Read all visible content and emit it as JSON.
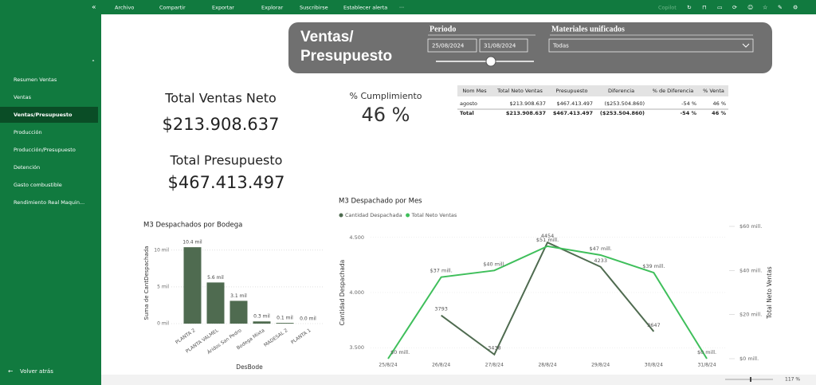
{
  "toolbar": {
    "items": [
      "Archivo",
      "Compartir",
      "Exportar",
      "Explorar",
      "Suscribirse",
      "Establecer alerta",
      "···"
    ],
    "copilot": "Copilot"
  },
  "sidebar": {
    "items": [
      "Resumen Ventas",
      "Ventas",
      "Ventas/Presupuesto",
      "Producción",
      "Producción/Presupuesto",
      "Detención",
      "Gasto combustible",
      "Rendimiento Real Maquin..."
    ],
    "selected": 2,
    "back": "Volver atrás"
  },
  "header": {
    "title": [
      "Ventas/",
      "Presupuesto"
    ],
    "period_label": "Periodo",
    "start": "25/08/2024",
    "end": "31/08/2024",
    "materials_label": "Materiales unificados",
    "materials_value": "Todas"
  },
  "kpis": [
    {
      "label": "Total Ventas Neto",
      "value": "$213.908.637"
    },
    {
      "label": "Total Presupuesto",
      "value": "$467.413.497"
    },
    {
      "label": "% Cumplimiento",
      "value": "46 %"
    }
  ],
  "table": {
    "columns": [
      "Nom Mes",
      "Total Neto Ventas",
      "Presupuesto",
      "Diferencia",
      "% de Diferencia",
      "% Venta"
    ],
    "rows": [
      [
        "agosto",
        "$213.908.637",
        "$467.413.497",
        "($253.504.860)",
        "-54 %",
        "46 %"
      ]
    ],
    "total": [
      "Total",
      "$213.908.637",
      "$467.413.497",
      "($253.504.860)",
      "-54 %",
      "46 %"
    ]
  },
  "chart_data": [
    {
      "type": "bar",
      "title": "M3 Despachados por Bodega",
      "x_label": "DesBode",
      "y_label": "Suma de CantDespachada",
      "categories": [
        "PLANTA 2",
        "PLANTA VALMEL",
        "Áridos San Pedro",
        "Bodega Mixta",
        "MADESAL 2",
        "PLANTA 1"
      ],
      "values": [
        10400,
        5600,
        3100,
        300,
        100,
        0
      ],
      "value_labels": [
        "10.4 mil",
        "5.6 mil",
        "3.1 mil",
        "0.3 mil",
        "0.1 mil",
        "0.0 mil"
      ],
      "color": "#4f6b50",
      "ylim": [
        0,
        11500
      ],
      "yticks": [
        {
          "value": 0,
          "label": "0 mil"
        },
        {
          "value": 5000,
          "label": "5 mil"
        },
        {
          "value": 10000,
          "label": "10 mil"
        }
      ],
      "grid": true
    },
    {
      "type": "line",
      "title": "M3 Despachado por Mes",
      "y_label": "Cantidad Despachada",
      "y2_label": "Total Neto Ventas",
      "categories": [
        "25/8/24",
        "26/8/24",
        "27/8/24",
        "28/8/24",
        "29/8/24",
        "30/8/24",
        "31/8/24"
      ],
      "series": [
        {
          "name": "Cantidad Despachada",
          "color": "#4f6b50",
          "values": [
            null,
            3793,
            3438,
            4454,
            4233,
            3647,
            null
          ]
        },
        {
          "name": "Total Neto Ventas",
          "color": "#3fbf5b",
          "axis": "y2",
          "values": [
            0,
            37000000,
            40000000,
            51000000,
            47000000,
            39000000,
            0
          ],
          "value_labels": [
            "$0 mill.",
            "$37 mill.",
            "$40 mill.",
            "$51 mill.",
            "$47 mill.",
            "$39 mill.",
            "$0 mill."
          ]
        }
      ],
      "ylim": [
        3400,
        4600
      ],
      "yticks": [
        {
          "value": 3500,
          "label": "3.500"
        },
        {
          "value": 4000,
          "label": "4.000"
        },
        {
          "value": 4500,
          "label": "4.500"
        }
      ],
      "y2lim": [
        0,
        60000000
      ],
      "y2ticks": [
        {
          "value": 0,
          "label": "$0 mill."
        },
        {
          "value": 20000000,
          "label": "$20 mill."
        },
        {
          "value": 40000000,
          "label": "$40 mill."
        },
        {
          "value": 60000000,
          "label": "$60 mill."
        }
      ],
      "grid": true
    }
  ],
  "zoom": "117 %"
}
